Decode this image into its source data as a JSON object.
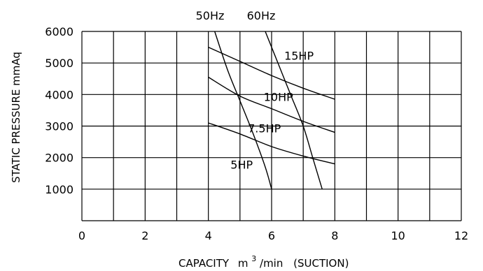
{
  "chart_data": {
    "type": "line",
    "title": "",
    "top_labels": [
      "50Hz",
      "60Hz"
    ],
    "xlabel_parts": {
      "prefix": "CAPACITY",
      "unit_base": "m",
      "unit_sup": "3",
      "unit_rest": "/min",
      "suffix": "(SUCTION)"
    },
    "ylabel": "STATIC PRESSURE  mmAq",
    "xlim": [
      0,
      12
    ],
    "ylim": [
      0,
      6000
    ],
    "x_ticks": [
      "0",
      "2",
      "4",
      "6",
      "8",
      "10",
      "12"
    ],
    "y_ticks": [
      "1000",
      "2000",
      "3000",
      "4000",
      "5000",
      "6000"
    ],
    "grid": true,
    "series": [
      {
        "name": "15HP",
        "x": [
          4.0,
          5.0,
          6.0,
          7.0,
          8.0
        ],
        "y": [
          5500,
          5050,
          4600,
          4200,
          3850
        ]
      },
      {
        "name": "10HP",
        "x": [
          4.0,
          5.0,
          6.0,
          7.0,
          8.0
        ],
        "y": [
          4550,
          3950,
          3550,
          3150,
          2800
        ]
      },
      {
        "name": "7.5HP",
        "x": [
          4.0,
          5.0,
          6.0,
          7.0,
          8.0
        ],
        "y": [
          3100,
          2750,
          2350,
          2050,
          1800
        ]
      },
      {
        "name": "50Hz",
        "x": [
          4.2,
          4.6,
          5.0,
          5.4,
          5.8,
          6.0
        ],
        "y": [
          6000,
          4800,
          3800,
          2800,
          1700,
          1000
        ]
      },
      {
        "name": "60Hz",
        "x": [
          5.8,
          6.2,
          6.6,
          7.0,
          7.3,
          7.6
        ],
        "y": [
          6000,
          5000,
          4000,
          3000,
          2000,
          1000
        ]
      }
    ],
    "curve_labels": [
      {
        "text": "15HP",
        "x": 6.4,
        "y": 5100
      },
      {
        "text": "10HP",
        "x": 5.75,
        "y": 3800
      },
      {
        "text": "7.5HP",
        "x": 5.25,
        "y": 2800
      },
      {
        "text": "5HP",
        "x": 4.7,
        "y": 1650
      }
    ]
  }
}
